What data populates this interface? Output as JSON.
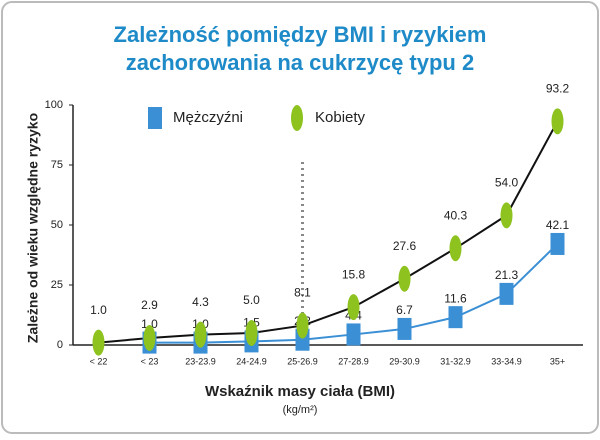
{
  "chart_data": {
    "type": "line",
    "title": [
      "Zależność pomiędzy BMI i ryzykiem",
      "zachorowania na cukrzycę typu 2"
    ],
    "x_label": "Wskaźnik masy ciała (BMI)",
    "x_unit": "(kg/m²)",
    "y_label": "Zależne od wieku względne ryzyko",
    "categories": [
      "< 22",
      "< 23",
      "23-23.9",
      "24-24.9",
      "25-26.9",
      "27-28.9",
      "29-30.9",
      "31-32.9",
      "33-34.9",
      "35+"
    ],
    "series": [
      {
        "name": "Mężczyźni",
        "color": "#3b8fd5",
        "line_color": "#3b8fd5",
        "marker": "square",
        "values": [
          null,
          1.0,
          1.0,
          1.5,
          2.2,
          4.4,
          6.7,
          11.6,
          21.3,
          42.1
        ],
        "value_labels": [
          null,
          "1.0",
          "1.0",
          "1.5",
          "2.2",
          "4.4",
          "6.7",
          "11.6",
          "21.3",
          "42.1"
        ]
      },
      {
        "name": "Kobiety",
        "color": "#8dc21f",
        "line_color": "#111111",
        "marker": "ellipse",
        "values": [
          1.0,
          2.9,
          4.3,
          5.0,
          8.1,
          15.8,
          27.6,
          40.3,
          54.0,
          93.2
        ],
        "value_labels": [
          "1.0",
          "2.9",
          "4.3",
          "5.0",
          "8.1",
          "15.8",
          "27.6",
          "40.3",
          "54.0",
          "93.2"
        ]
      }
    ],
    "ylim": [
      0,
      100
    ],
    "yticks": [
      0,
      25,
      50,
      75,
      100
    ],
    "legend": "top-left"
  }
}
